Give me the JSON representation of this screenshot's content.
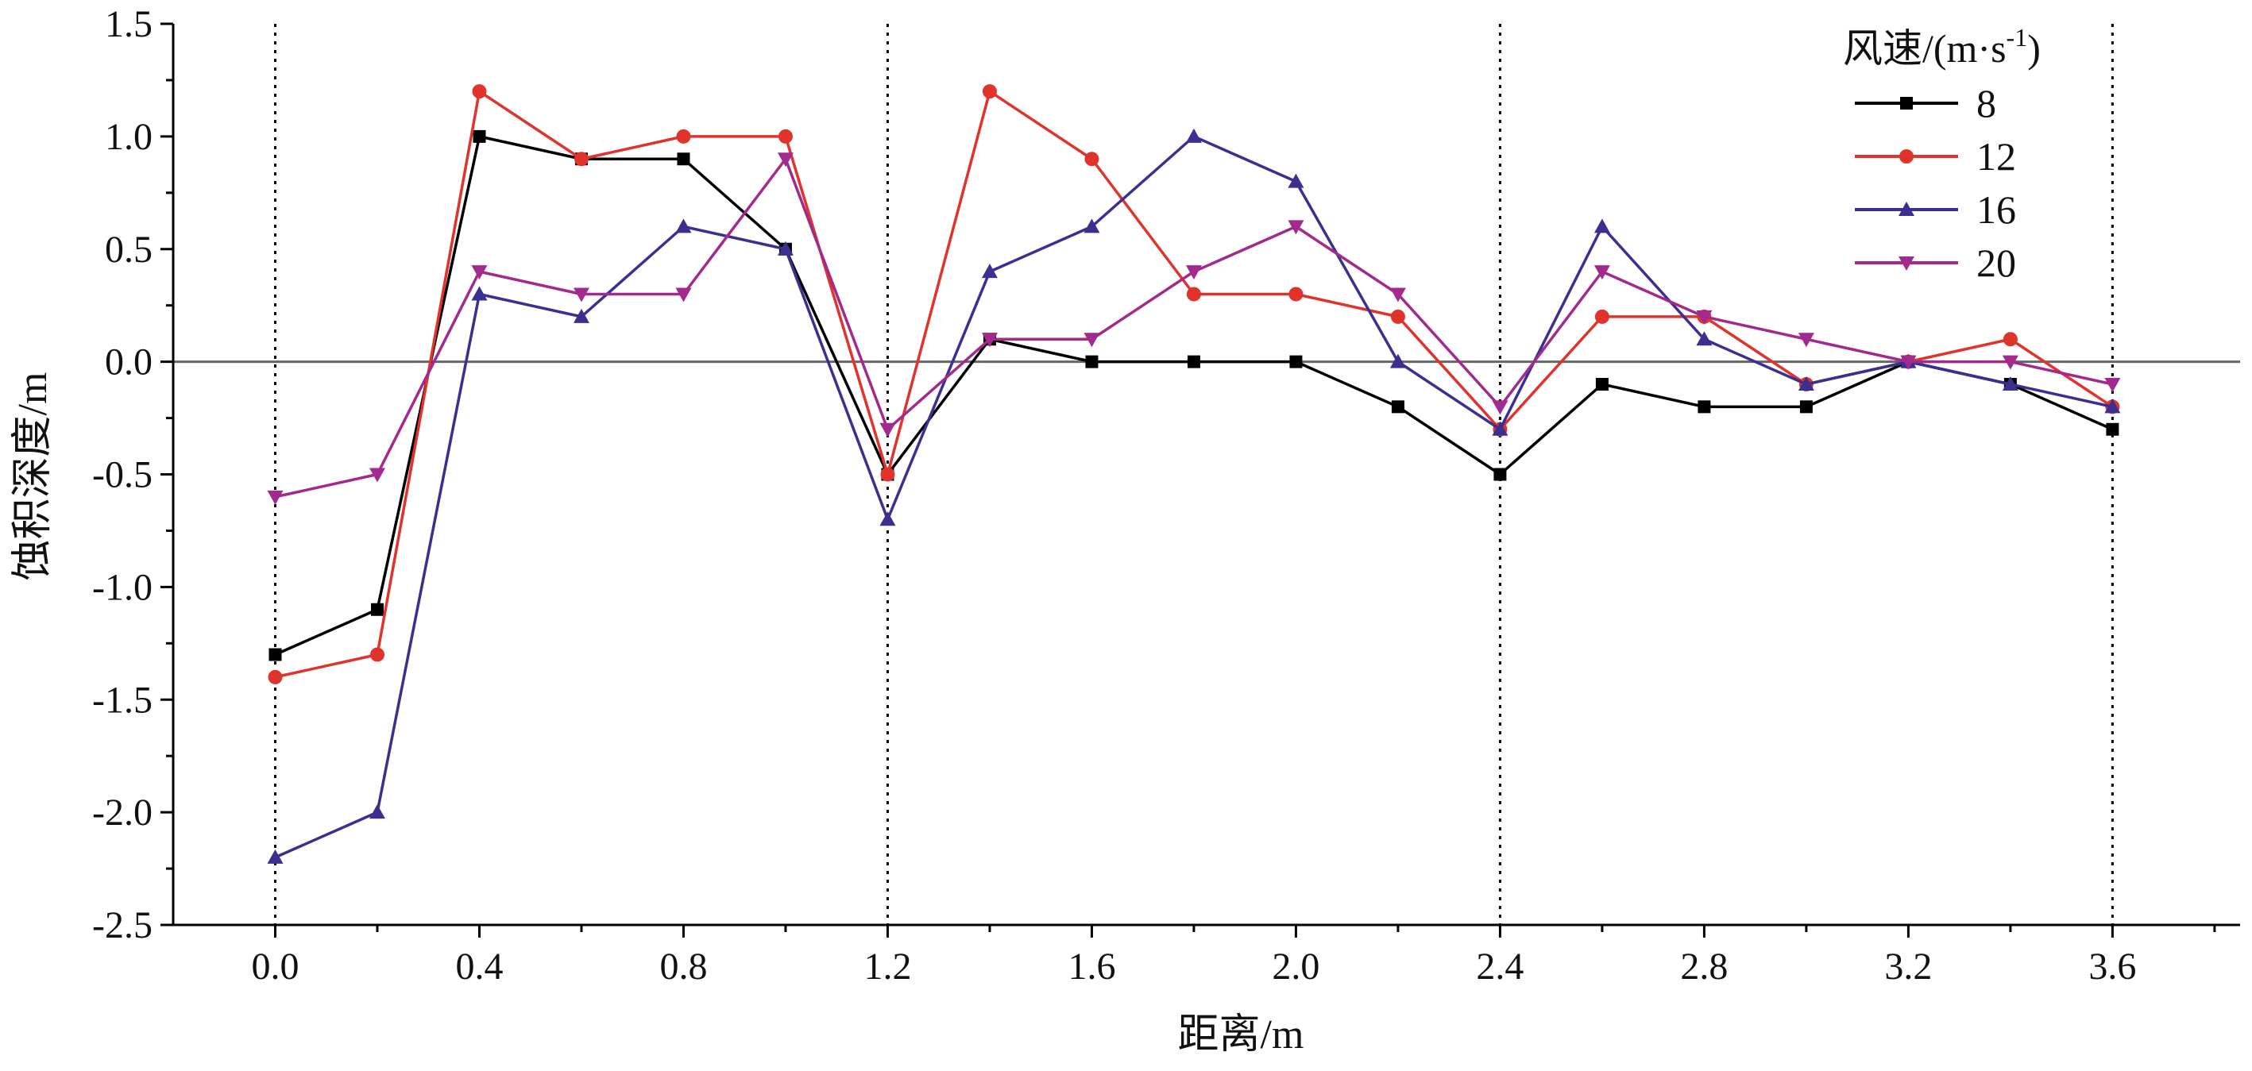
{
  "chart_data": {
    "type": "line",
    "xlabel": "距离/m",
    "ylabel": "蚀积深度/m",
    "xlim": [
      -0.2,
      3.85
    ],
    "ylim": [
      -2.5,
      1.5
    ],
    "x_ticks": [
      "0.0",
      "0.4",
      "0.8",
      "1.2",
      "1.6",
      "2.0",
      "2.4",
      "2.8",
      "3.2",
      "3.6"
    ],
    "y_ticks": [
      "1.5",
      "1.0",
      "0.5",
      "0.0",
      "-0.5",
      "-1.0",
      "-1.5",
      "-2.0",
      "-2.5"
    ],
    "vertical_reference_lines_x": [
      0.0,
      1.2,
      2.4,
      3.6
    ],
    "horizontal_reference_line_y": 0.0,
    "legend": {
      "title": "风速/(m·s",
      "title_sup": "-1",
      "title_end": ")",
      "placement": "top-right"
    },
    "x": [
      0.0,
      0.2,
      0.4,
      0.6,
      0.8,
      1.0,
      1.2,
      1.4,
      1.6,
      1.8,
      2.0,
      2.2,
      2.4,
      2.6,
      2.8,
      3.0,
      3.2,
      3.4,
      3.6
    ],
    "series": [
      {
        "name": "8",
        "color": "#000000",
        "marker": "square",
        "values": [
          -1.3,
          -1.1,
          1.0,
          0.9,
          0.9,
          0.5,
          -0.5,
          0.1,
          0.0,
          0.0,
          0.0,
          -0.2,
          -0.5,
          -0.1,
          -0.2,
          -0.2,
          0.0,
          -0.1,
          -0.3
        ]
      },
      {
        "name": "12",
        "color": "#e0332b",
        "marker": "circle",
        "values": [
          -1.4,
          -1.3,
          1.2,
          0.9,
          1.0,
          1.0,
          -0.5,
          1.2,
          0.9,
          0.3,
          0.3,
          0.2,
          -0.3,
          0.2,
          0.2,
          -0.1,
          0.0,
          0.1,
          -0.2
        ]
      },
      {
        "name": "16",
        "color": "#3b2f8f",
        "marker": "triangle-up",
        "values": [
          -2.2,
          -2.0,
          0.3,
          0.2,
          0.6,
          0.5,
          -0.7,
          0.4,
          0.6,
          1.0,
          0.8,
          0.0,
          -0.3,
          0.6,
          0.1,
          -0.1,
          0.0,
          -0.1,
          -0.2
        ]
      },
      {
        "name": "20",
        "color": "#a12a8c",
        "marker": "triangle-down",
        "values": [
          -0.6,
          -0.5,
          0.4,
          0.3,
          0.3,
          0.9,
          -0.3,
          0.1,
          0.1,
          0.4,
          0.6,
          0.3,
          -0.2,
          0.4,
          0.2,
          0.1,
          0.0,
          0.0,
          -0.1
        ]
      }
    ]
  }
}
